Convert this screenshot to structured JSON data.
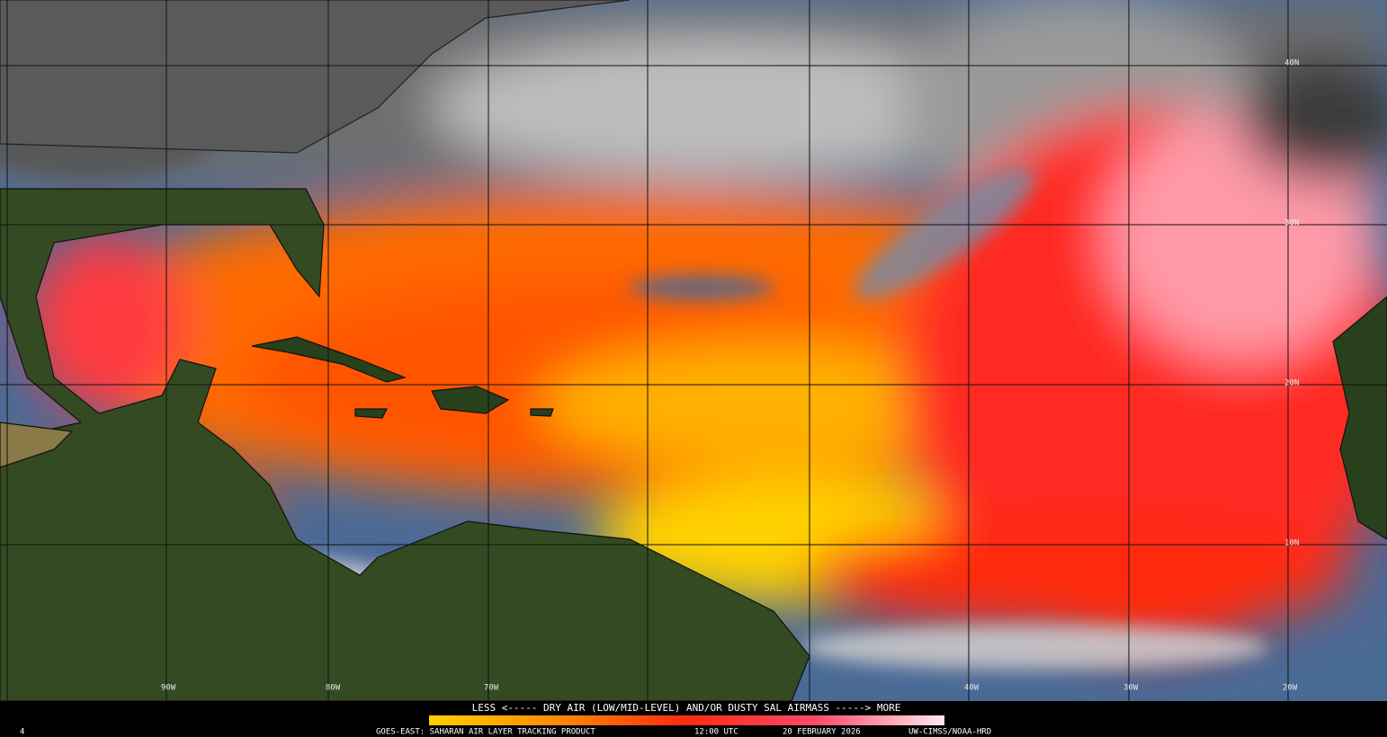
{
  "map": {
    "latitude_labels": [
      "40N",
      "30N",
      "20N",
      "10N"
    ],
    "longitude_labels": [
      "90W",
      "80W",
      "70W",
      "40W",
      "30W",
      "20W"
    ]
  },
  "legend": {
    "caption": "LESS <----- DRY AIR (LOW/MID-LEVEL) AND/OR DUSTY SAL AIRMASS -----> MORE"
  },
  "footer": {
    "product": "GOES-EAST: SAHARAN AIR LAYER TRACKING PRODUCT",
    "time": "12:00 UTC",
    "date": "20 FEBRUARY 2026",
    "credit": "UW-CIMSS/NOAA-HRD"
  },
  "corner_label": "4"
}
